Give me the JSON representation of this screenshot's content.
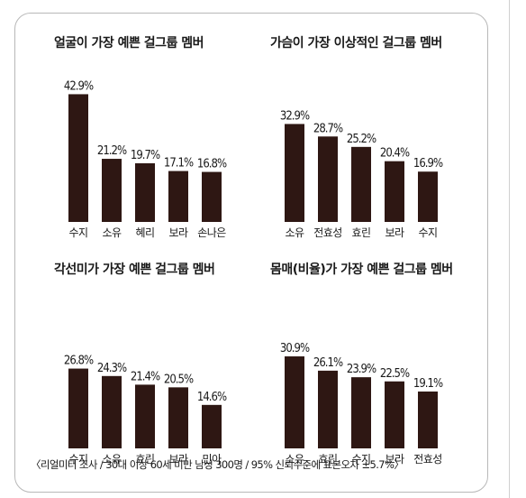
{
  "chart_data": [
    {
      "type": "bar",
      "title": "얼굴이 가장 예쁜 걸그룹 멤버",
      "categories": [
        "수지",
        "소유",
        "혜리",
        "보라",
        "손나은"
      ],
      "values": [
        42.9,
        21.2,
        19.7,
        17.1,
        16.8
      ],
      "value_labels": [
        "42.9%",
        "21.2%",
        "19.7%",
        "17.1%",
        "16.8%"
      ],
      "ylim": [
        0,
        45
      ]
    },
    {
      "type": "bar",
      "title": "가슴이 가장 이상적인 걸그룹 멤버",
      "categories": [
        "소유",
        "전효성",
        "효린",
        "보라",
        "수지"
      ],
      "values": [
        32.9,
        28.7,
        25.2,
        20.4,
        16.9
      ],
      "value_labels": [
        "32.9%",
        "28.7%",
        "25.2%",
        "20.4%",
        "16.9%"
      ],
      "ylim": [
        0,
        45
      ]
    },
    {
      "type": "bar",
      "title": "각선미가 가장 예쁜 걸그룹 멤버",
      "categories": [
        "수지",
        "소유",
        "효린",
        "보라",
        "민아"
      ],
      "values": [
        26.8,
        24.3,
        21.4,
        20.5,
        14.6
      ],
      "value_labels": [
        "26.8%",
        "24.3%",
        "21.4%",
        "20.5%",
        "14.6%"
      ],
      "ylim": [
        0,
        45
      ]
    },
    {
      "type": "bar",
      "title": "몸매(비율)가 가장 예쁜 걸그룹 멤버",
      "categories": [
        "소유",
        "효린",
        "수지",
        "보라",
        "전효성"
      ],
      "values": [
        30.9,
        26.1,
        23.9,
        22.5,
        19.1
      ],
      "value_labels": [
        "30.9%",
        "26.1%",
        "23.9%",
        "22.5%",
        "19.1%"
      ],
      "ylim": [
        0,
        45
      ]
    }
  ],
  "footnote": "〈리얼미터 조사 / 30대 이상 60세 미만 남성 300명 / 95% 신뢰수준에 표본오차 ±5.7%〉",
  "colors": {
    "bar": "#2e1713",
    "border": "#b8b8b8"
  }
}
